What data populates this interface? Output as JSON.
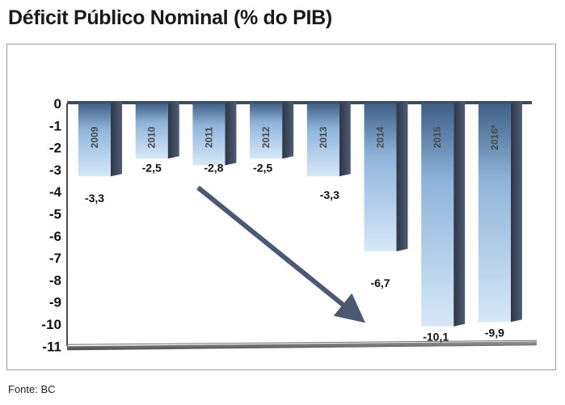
{
  "page": {
    "title": "Déficit Público Nominal (% do PIB)",
    "source": "Fonte: BC"
  },
  "colors": {
    "bar_light": "#cfe3f7",
    "bar_mid": "#8fb4da",
    "bar_dark": "#3d4a5f",
    "floor": "#6e6e6e",
    "arrow": "#4b5a72",
    "frame": "#9a9a9a"
  },
  "chart_data": {
    "type": "bar",
    "title": "Déficit Público Nominal (% do PIB)",
    "categories": [
      "2009",
      "2010",
      "2011",
      "2012",
      "2013",
      "2014",
      "2015",
      "2016*"
    ],
    "values": [
      -3.3,
      -2.5,
      -2.8,
      -2.5,
      -3.3,
      -6.7,
      -10.1,
      -9.9
    ],
    "data_labels": [
      "-3,3",
      "-2,5",
      "-2,8",
      "-2,5",
      "-3,3",
      "-6,7",
      "-10,1",
      "-9,9"
    ],
    "y_ticks": [
      "0",
      "-1",
      "-2",
      "-3",
      "-4",
      "-5",
      "-6",
      "-7",
      "-8",
      "-9",
      "-10",
      "-11"
    ],
    "ylim": [
      -11,
      0
    ],
    "grid": false,
    "legend": "none",
    "annotation": "downward trend arrow from 2010 toward 2015"
  }
}
